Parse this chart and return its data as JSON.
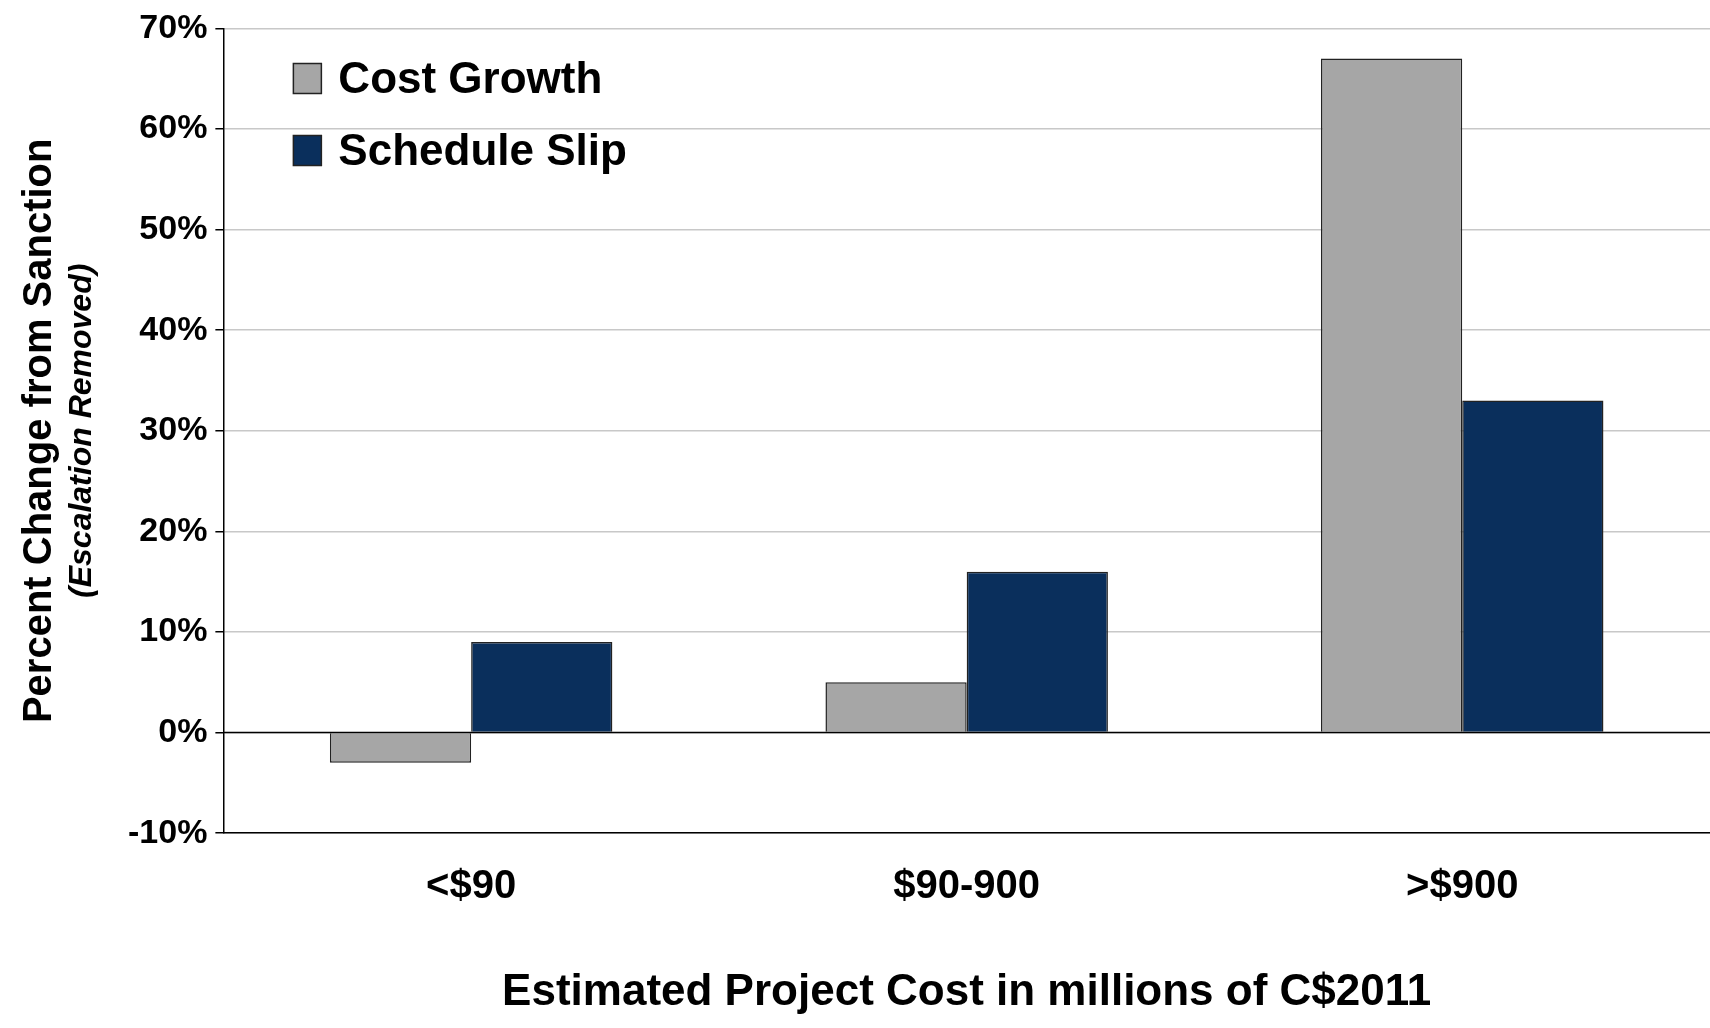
{
  "chart_data": {
    "type": "bar",
    "xlabel": "Estimated Project Cost in millions of C$2011",
    "ylabel": "Percent Change from Sanction\n(Escalation Removed)",
    "categories": [
      "<$90",
      "$90-900",
      ">$900"
    ],
    "series": [
      {
        "name": "Cost Growth",
        "color": "#a6a6a6",
        "values": [
          -3,
          5,
          67
        ]
      },
      {
        "name": "Schedule Slip",
        "color": "#0a2f5c",
        "values": [
          9,
          16,
          33
        ]
      }
    ],
    "ylim": [
      -10,
      70
    ],
    "yticks": [
      {
        "value": -10,
        "label": "-10%"
      },
      {
        "value": 0,
        "label": "0%"
      },
      {
        "value": 10,
        "label": "10%"
      },
      {
        "value": 20,
        "label": "20%"
      },
      {
        "value": 30,
        "label": "30%"
      },
      {
        "value": 40,
        "label": "40%"
      },
      {
        "value": 50,
        "label": "50%"
      },
      {
        "value": 60,
        "label": "60%"
      },
      {
        "value": 70,
        "label": "70%"
      }
    ],
    "grid": "y",
    "legend": "top left"
  }
}
